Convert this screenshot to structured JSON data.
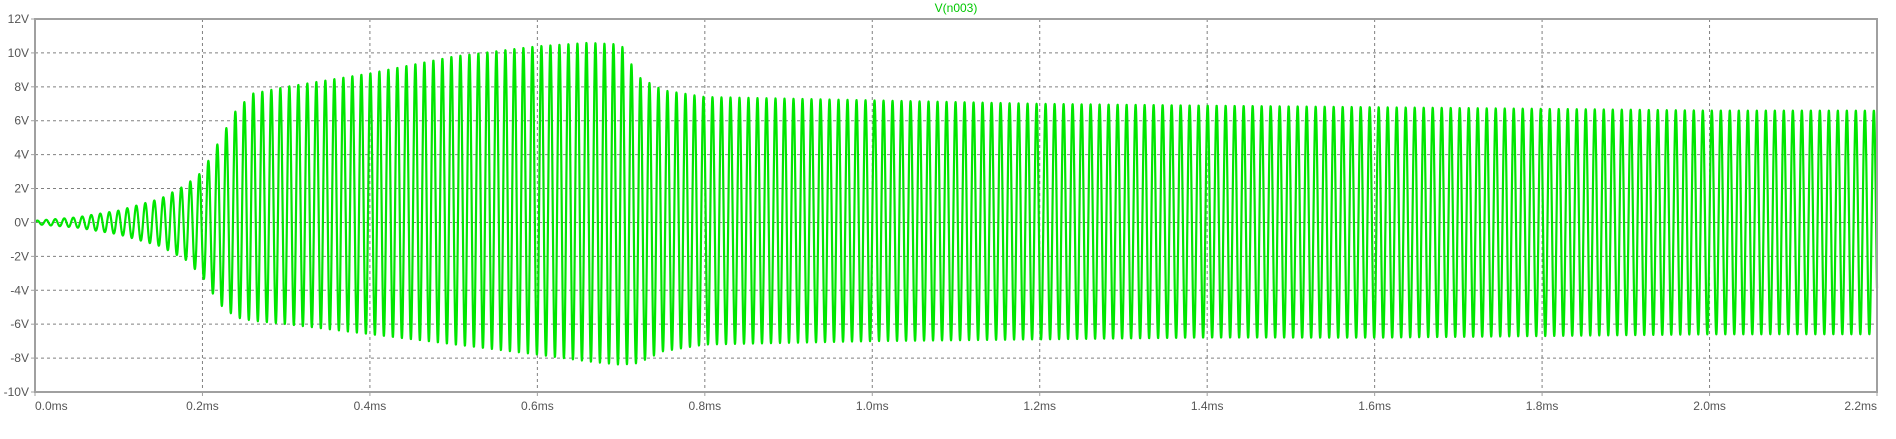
{
  "chart_data": {
    "type": "line",
    "title": "V(n003)",
    "xlabel": "",
    "ylabel": "",
    "xlim": [
      0,
      2.2
    ],
    "ylim": [
      -10,
      12
    ],
    "x_unit": "ms",
    "y_unit": "V",
    "grid": true,
    "x_ticks": [
      "0.0ms",
      "0.2ms",
      "0.4ms",
      "0.6ms",
      "0.8ms",
      "1.0ms",
      "1.2ms",
      "1.4ms",
      "1.6ms",
      "1.8ms",
      "2.0ms",
      "2.2ms"
    ],
    "y_ticks": [
      "12V",
      "10V",
      "8V",
      "6V",
      "4V",
      "2V",
      "0V",
      "-2V",
      "-4V",
      "-6V",
      "-8V",
      "-10V"
    ],
    "x_tick_values": [
      0,
      0.2,
      0.4,
      0.6,
      0.8,
      1.0,
      1.2,
      1.4,
      1.6,
      1.8,
      2.0,
      2.2
    ],
    "y_tick_values": [
      12,
      10,
      8,
      6,
      4,
      2,
      0,
      -2,
      -4,
      -6,
      -8,
      -10
    ],
    "series": [
      {
        "name": "V(n003)",
        "color": "#00e600",
        "oscillation_frequency_khz": 93,
        "envelope_time_ms": [
          0,
          0.05,
          0.1,
          0.15,
          0.18,
          0.2,
          0.22,
          0.24,
          0.26,
          0.3,
          0.4,
          0.5,
          0.6,
          0.66,
          0.7,
          0.72,
          0.75,
          0.8,
          1.0,
          1.2,
          1.4,
          1.6,
          1.8,
          2.0,
          2.2
        ],
        "envelope_max_v": [
          0.1,
          0.3,
          0.7,
          1.4,
          2.2,
          3.0,
          4.8,
          6.6,
          7.6,
          8.0,
          8.8,
          9.8,
          10.4,
          10.6,
          10.5,
          8.6,
          7.8,
          7.4,
          7.2,
          7.0,
          6.9,
          6.8,
          6.7,
          6.6,
          6.6
        ],
        "envelope_min_v": [
          -0.1,
          -0.3,
          -0.7,
          -1.4,
          -2.2,
          -3.2,
          -4.8,
          -5.6,
          -5.8,
          -6.0,
          -6.6,
          -7.2,
          -7.8,
          -8.2,
          -8.4,
          -8.3,
          -7.6,
          -7.2,
          -7.0,
          -6.9,
          -6.8,
          -6.8,
          -6.7,
          -6.6,
          -6.6
        ]
      }
    ]
  },
  "colors": {
    "background": "#ffffff",
    "frame": "#a0a0a0",
    "grid": "#808080",
    "axis_text": "#555555",
    "trace": "#00e600",
    "title": "#00c800"
  }
}
